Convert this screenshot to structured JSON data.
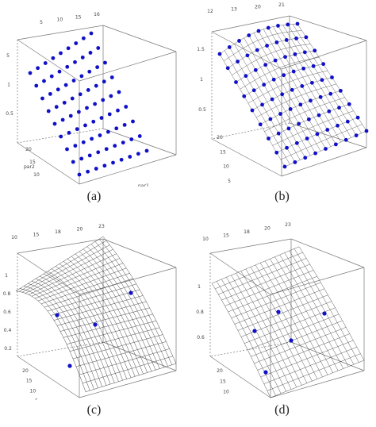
{
  "chart_data": [
    {
      "type": "scatter",
      "panel": "a",
      "caption": "(a)",
      "description_3d": "regular grid of design points on a tilted plane",
      "grid_n": 9,
      "color": "#1010c8",
      "wireframe": false,
      "axis_labels": {
        "x": "par1",
        "y": "par2",
        "z": ""
      },
      "top_ticks": [
        "5",
        "10",
        "15",
        "16"
      ],
      "left_ticks": [
        "5",
        "1",
        "0.5"
      ],
      "bottom_ticks": [
        "20",
        "15",
        "10"
      ]
    },
    {
      "type": "scatter",
      "panel": "b",
      "caption": "(b)",
      "description_3d": "grid of design points with fitted response surface",
      "grid_n": 9,
      "color": "#1010c8",
      "wireframe": true,
      "axis_labels": {
        "x": "",
        "y": "",
        "z": ""
      },
      "top_ticks": [
        "12",
        "13",
        "20",
        "21"
      ],
      "left_ticks": [
        "1.5",
        "1",
        "0.5"
      ],
      "bottom_ticks": [
        "20",
        "15",
        "10",
        "5"
      ]
    },
    {
      "type": "scatter",
      "panel": "c",
      "caption": "(c)",
      "description_3d": "few sampled points with curved wireframe surface",
      "color": "#1010c8",
      "wireframe": true,
      "points_count": 4,
      "top_ticks": [
        "10",
        "15",
        "18",
        "20",
        "23"
      ],
      "left_ticks": [
        "1",
        "0.8",
        "0.6",
        "0.4",
        "0.2"
      ],
      "bottom_ticks": [
        "20",
        "15",
        "10",
        "5"
      ]
    },
    {
      "type": "scatter",
      "panel": "d",
      "caption": "(d)",
      "description_3d": "few sampled points with smooth wireframe surface",
      "color": "#1010c8",
      "wireframe": true,
      "points_count": 5,
      "top_ticks": [
        "10",
        "15",
        "18",
        "20",
        "23"
      ],
      "left_ticks": [
        "1",
        "0.8",
        "0.6"
      ],
      "bottom_ticks": [
        "20",
        "15",
        "10",
        "5"
      ]
    }
  ]
}
